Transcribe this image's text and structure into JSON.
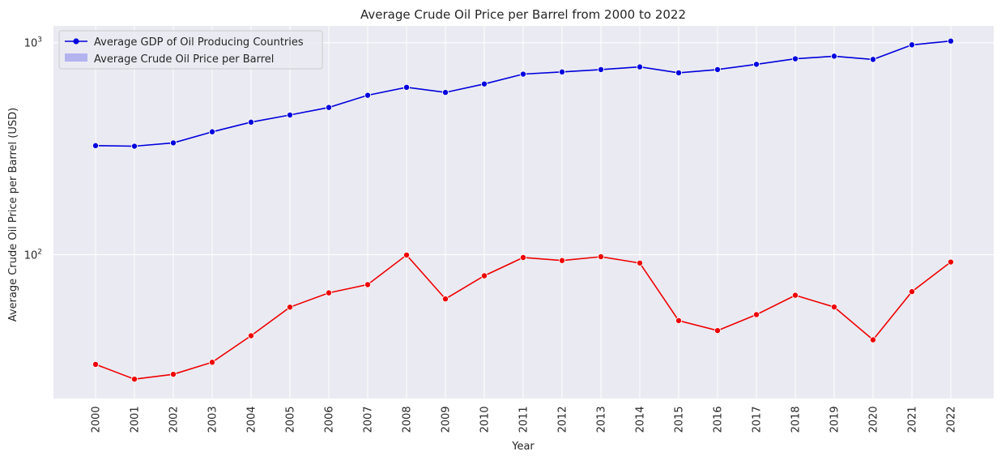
{
  "chart_data": {
    "type": "line",
    "title": "Average Crude Oil Price per Barrel from 2000 to 2022",
    "xlabel": "Year",
    "ylabel": "Average Crude Oil Price per Barrel (USD)",
    "yscale": "log",
    "ylim": [
      21,
      1200
    ],
    "yticks": [
      {
        "value": 100,
        "base": "10",
        "exp": "2"
      },
      {
        "value": 1000,
        "base": "10",
        "exp": "3"
      }
    ],
    "grid": true,
    "legend_position": "top-left",
    "x": [
      "2000",
      "2001",
      "2002",
      "2003",
      "2004",
      "2005",
      "2006",
      "2007",
      "2008",
      "2009",
      "2010",
      "2011",
      "2012",
      "2013",
      "2014",
      "2015",
      "2016",
      "2017",
      "2018",
      "2019",
      "2020",
      "2021",
      "2022"
    ],
    "series": [
      {
        "name": "Average GDP of Oil Producing Countries",
        "color": "#0000dd",
        "legend_marker": "line-dot",
        "values": [
          327,
          325,
          337,
          380,
          422,
          456,
          495,
          565,
          616,
          583,
          639,
          711,
          728,
          747,
          769,
          721,
          747,
          791,
          840,
          864,
          834,
          977,
          1018
        ]
      },
      {
        "name": "",
        "color": "#ee0000",
        "values": [
          30.4,
          25.9,
          27.3,
          31.1,
          41.5,
          56.6,
          66.1,
          72.3,
          99.7,
          61.9,
          79.6,
          97.0,
          93.9,
          97.9,
          91.4,
          48.9,
          43.9,
          52.2,
          64.4,
          56.7,
          39.7,
          67.0,
          92.4
        ]
      }
    ],
    "legend_entries": [
      {
        "label": "Average GDP of Oil Producing Countries",
        "marker": "line-dot",
        "color": "#0000dd"
      },
      {
        "label": "Average Crude Oil Price per Barrel",
        "marker": "patch",
        "color": "#7070ee"
      }
    ]
  }
}
